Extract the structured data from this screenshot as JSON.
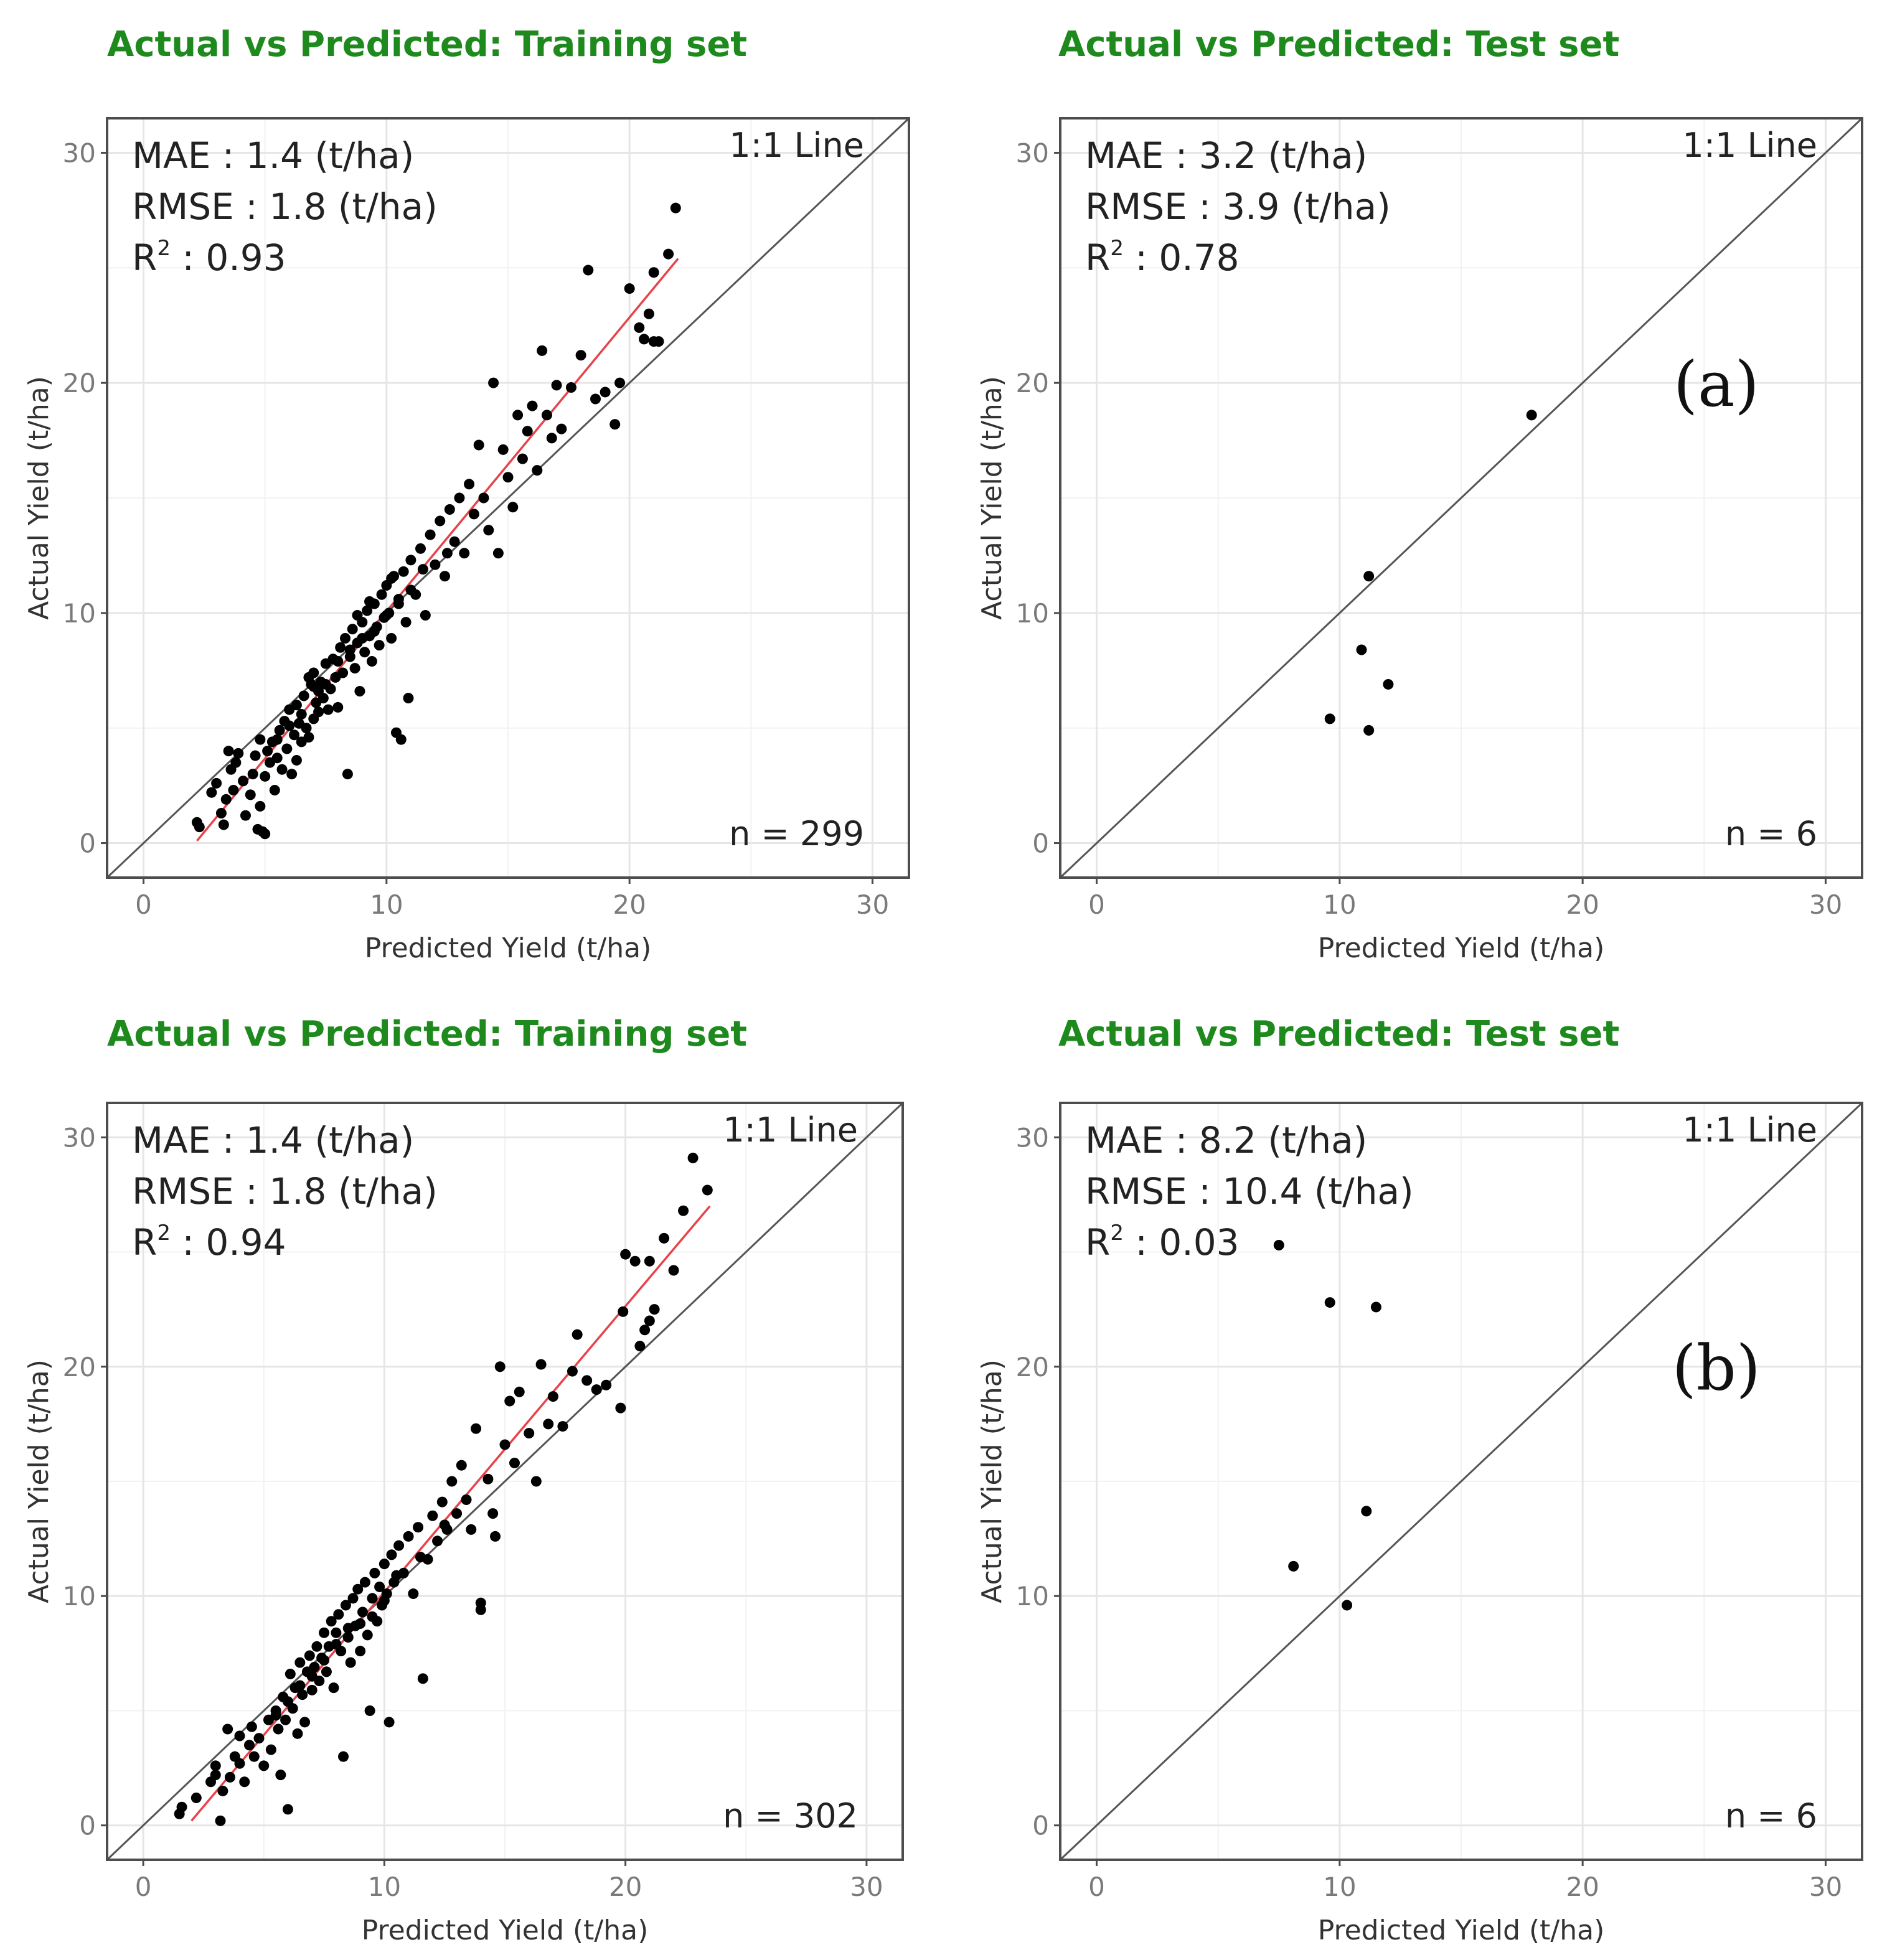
{
  "colors": {
    "title": "#1e8a1e",
    "points": "#000000",
    "fit_line": "#e8434a",
    "identity_line": "#555555",
    "grid": "#e6e6e6"
  },
  "chart_data": [
    {
      "type": "scatter",
      "title": "Actual vs Predicted: Training set",
      "xlabel": "Predicted Yield (t/ha)",
      "ylabel": "Actual Yield (t/ha)",
      "xlim": [
        -1.5,
        31.5
      ],
      "ylim": [
        -1.5,
        31.5
      ],
      "xticks": [
        "0",
        "10",
        "20",
        "30"
      ],
      "yticks": [
        "0",
        "10",
        "20",
        "30"
      ],
      "stats": {
        "mae": "MAE : 1.4 (t/ha)",
        "rmse": "RMSE : 1.8 (t/ha)",
        "r2_label": "R",
        "r2_sup": "2",
        "r2_value": " : 0.93"
      },
      "identity_label": "1:1 Line",
      "n_label": "n = 299",
      "fit_line": {
        "x": [
          2.2,
          22.0
        ],
        "y": [
          0.1,
          25.4
        ]
      },
      "points": [
        [
          2.2,
          0.9
        ],
        [
          2.3,
          0.7
        ],
        [
          2.8,
          2.2
        ],
        [
          3.0,
          2.6
        ],
        [
          3.2,
          1.3
        ],
        [
          3.4,
          1.9
        ],
        [
          3.3,
          0.8
        ],
        [
          3.6,
          3.2
        ],
        [
          3.8,
          3.5
        ],
        [
          3.5,
          4.0
        ],
        [
          3.7,
          2.3
        ],
        [
          3.9,
          3.9
        ],
        [
          4.1,
          2.7
        ],
        [
          4.2,
          1.2
        ],
        [
          4.4,
          2.1
        ],
        [
          4.5,
          3.0
        ],
        [
          4.6,
          3.8
        ],
        [
          4.7,
          0.6
        ],
        [
          4.8,
          1.6
        ],
        [
          4.9,
          0.5
        ],
        [
          5.0,
          2.9
        ],
        [
          5.1,
          4.0
        ],
        [
          5.0,
          0.4
        ],
        [
          5.2,
          3.5
        ],
        [
          5.3,
          4.4
        ],
        [
          5.4,
          2.3
        ],
        [
          5.5,
          3.7
        ],
        [
          5.6,
          4.9
        ],
        [
          5.7,
          3.2
        ],
        [
          5.8,
          5.3
        ],
        [
          5.9,
          4.1
        ],
        [
          6.0,
          5.8
        ],
        [
          6.1,
          3.0
        ],
        [
          6.2,
          4.7
        ],
        [
          6.3,
          6.0
        ],
        [
          6.3,
          3.6
        ],
        [
          6.4,
          5.2
        ],
        [
          6.5,
          4.4
        ],
        [
          6.6,
          6.4
        ],
        [
          6.7,
          5.0
        ],
        [
          6.8,
          4.6
        ],
        [
          6.9,
          6.9
        ],
        [
          7.0,
          5.4
        ],
        [
          7.0,
          7.4
        ],
        [
          7.1,
          6.1
        ],
        [
          7.2,
          5.7
        ],
        [
          7.3,
          7.0
        ],
        [
          7.4,
          6.3
        ],
        [
          7.5,
          7.8
        ],
        [
          7.6,
          5.8
        ],
        [
          7.7,
          6.7
        ],
        [
          7.8,
          8.0
        ],
        [
          7.9,
          7.2
        ],
        [
          8.0,
          5.9
        ],
        [
          8.1,
          8.5
        ],
        [
          8.2,
          7.4
        ],
        [
          8.3,
          8.9
        ],
        [
          8.4,
          3.0
        ],
        [
          8.5,
          8.1
        ],
        [
          8.6,
          9.3
        ],
        [
          8.7,
          7.6
        ],
        [
          8.8,
          8.7
        ],
        [
          8.9,
          6.6
        ],
        [
          9.0,
          9.6
        ],
        [
          9.1,
          8.3
        ],
        [
          9.2,
          10.1
        ],
        [
          9.3,
          9.0
        ],
        [
          9.4,
          7.9
        ],
        [
          9.5,
          10.4
        ],
        [
          9.6,
          9.4
        ],
        [
          9.7,
          8.6
        ],
        [
          9.8,
          10.8
        ],
        [
          9.9,
          9.8
        ],
        [
          10.0,
          11.2
        ],
        [
          10.1,
          10.0
        ],
        [
          10.2,
          8.9
        ],
        [
          10.3,
          11.6
        ],
        [
          10.4,
          4.8
        ],
        [
          10.5,
          10.6
        ],
        [
          10.6,
          4.5
        ],
        [
          10.7,
          11.8
        ],
        [
          10.8,
          9.6
        ],
        [
          10.9,
          6.3
        ],
        [
          11.0,
          12.3
        ],
        [
          11.2,
          10.8
        ],
        [
          11.4,
          12.8
        ],
        [
          11.6,
          9.9
        ],
        [
          11.8,
          13.4
        ],
        [
          12.0,
          12.1
        ],
        [
          12.2,
          14.0
        ],
        [
          12.4,
          11.6
        ],
        [
          12.6,
          14.5
        ],
        [
          12.8,
          13.1
        ],
        [
          13.0,
          15.0
        ],
        [
          13.2,
          12.6
        ],
        [
          13.4,
          15.6
        ],
        [
          13.6,
          14.3
        ],
        [
          13.8,
          17.3
        ],
        [
          14.0,
          15.0
        ],
        [
          14.2,
          13.6
        ],
        [
          14.4,
          20.0
        ],
        [
          14.6,
          12.6
        ],
        [
          14.8,
          17.1
        ],
        [
          15.0,
          15.9
        ],
        [
          15.2,
          14.6
        ],
        [
          15.4,
          18.6
        ],
        [
          15.6,
          16.7
        ],
        [
          15.8,
          17.9
        ],
        [
          16.0,
          19.0
        ],
        [
          16.2,
          16.2
        ],
        [
          16.4,
          21.4
        ],
        [
          16.6,
          18.6
        ],
        [
          16.8,
          17.6
        ],
        [
          17.0,
          19.9
        ],
        [
          17.2,
          18.0
        ],
        [
          17.6,
          19.8
        ],
        [
          18.0,
          21.2
        ],
        [
          18.3,
          24.9
        ],
        [
          18.6,
          19.3
        ],
        [
          19.0,
          19.6
        ],
        [
          19.4,
          18.2
        ],
        [
          19.6,
          20.0
        ],
        [
          20.0,
          24.1
        ],
        [
          20.4,
          22.4
        ],
        [
          20.8,
          23.0
        ],
        [
          21.0,
          24.8
        ],
        [
          21.2,
          21.8
        ],
        [
          21.6,
          25.6
        ],
        [
          21.9,
          27.6
        ],
        [
          20.6,
          21.9
        ],
        [
          21.0,
          21.8
        ],
        [
          6.0,
          5.1
        ],
        [
          6.5,
          5.6
        ],
        [
          7.0,
          6.8
        ],
        [
          7.5,
          6.9
        ],
        [
          8.0,
          7.9
        ],
        [
          8.5,
          8.4
        ],
        [
          9.0,
          8.9
        ],
        [
          9.5,
          9.2
        ],
        [
          10.0,
          9.9
        ],
        [
          10.5,
          10.4
        ],
        [
          11.0,
          11.0
        ],
        [
          5.5,
          4.5
        ],
        [
          4.8,
          4.5
        ],
        [
          6.8,
          7.2
        ],
        [
          7.2,
          6.6
        ],
        [
          8.8,
          9.9
        ],
        [
          9.3,
          10.5
        ],
        [
          10.2,
          11.5
        ],
        [
          11.5,
          11.9
        ],
        [
          12.5,
          12.6
        ]
      ]
    },
    {
      "type": "scatter",
      "title": "Actual vs Predicted: Test set",
      "xlabel": "Predicted Yield (t/ha)",
      "ylabel": "Actual Yield (t/ha)",
      "xlim": [
        -1.5,
        31.5
      ],
      "ylim": [
        -1.5,
        31.5
      ],
      "xticks": [
        "0",
        "10",
        "20",
        "30"
      ],
      "yticks": [
        "0",
        "10",
        "20",
        "30"
      ],
      "stats": {
        "mae": "MAE : 3.2 (t/ha)",
        "rmse": "RMSE : 3.9 (t/ha)",
        "r2_label": "R",
        "r2_sup": "2",
        "r2_value": " : 0.78"
      },
      "identity_label": "1:1 Line",
      "n_label": "n = 6",
      "panel_tag": "(a)",
      "points": [
        [
          17.9,
          18.6
        ],
        [
          11.2,
          11.6
        ],
        [
          10.9,
          8.4
        ],
        [
          12.0,
          6.9
        ],
        [
          9.6,
          5.4
        ],
        [
          11.2,
          4.9
        ]
      ]
    },
    {
      "type": "scatter",
      "title": "Actual vs Predicted: Training set",
      "xlabel": "Predicted Yield (t/ha)",
      "ylabel": "Actual Yield (t/ha)",
      "xlim": [
        -1.5,
        31.5
      ],
      "ylim": [
        -1.5,
        31.5
      ],
      "xticks": [
        "0",
        "10",
        "20",
        "30"
      ],
      "yticks": [
        "0",
        "10",
        "20",
        "30"
      ],
      "stats": {
        "mae": "MAE : 1.4 (t/ha)",
        "rmse": "RMSE : 1.8 (t/ha)",
        "r2_label": "R",
        "r2_sup": "2",
        "r2_value": " : 0.94"
      },
      "identity_label": "1:1 Line",
      "n_label": "n = 302",
      "fit_line": {
        "x": [
          2.0,
          23.5
        ],
        "y": [
          0.2,
          27.0
        ]
      },
      "points": [
        [
          1.5,
          0.5
        ],
        [
          1.6,
          0.8
        ],
        [
          2.2,
          1.2
        ],
        [
          2.8,
          1.9
        ],
        [
          3.0,
          2.6
        ],
        [
          3.2,
          0.2
        ],
        [
          3.3,
          1.5
        ],
        [
          3.5,
          4.2
        ],
        [
          3.6,
          2.1
        ],
        [
          3.8,
          3.0
        ],
        [
          4.0,
          2.7
        ],
        [
          4.2,
          1.9
        ],
        [
          4.4,
          3.5
        ],
        [
          4.5,
          4.3
        ],
        [
          4.6,
          3.0
        ],
        [
          4.8,
          3.8
        ],
        [
          5.0,
          2.6
        ],
        [
          5.2,
          4.6
        ],
        [
          5.3,
          3.3
        ],
        [
          5.5,
          5.0
        ],
        [
          5.6,
          4.2
        ],
        [
          5.7,
          2.2
        ],
        [
          5.8,
          5.6
        ],
        [
          5.9,
          4.6
        ],
        [
          6.0,
          0.7
        ],
        [
          6.1,
          6.6
        ],
        [
          6.2,
          5.1
        ],
        [
          6.3,
          6.0
        ],
        [
          6.4,
          4.0
        ],
        [
          6.5,
          7.1
        ],
        [
          6.6,
          5.7
        ],
        [
          6.7,
          4.5
        ],
        [
          6.8,
          6.7
        ],
        [
          6.9,
          7.4
        ],
        [
          7.0,
          5.9
        ],
        [
          7.1,
          6.9
        ],
        [
          7.2,
          7.8
        ],
        [
          7.3,
          6.3
        ],
        [
          7.4,
          7.3
        ],
        [
          7.5,
          8.4
        ],
        [
          7.6,
          6.7
        ],
        [
          7.7,
          7.8
        ],
        [
          7.8,
          8.9
        ],
        [
          7.9,
          6.0
        ],
        [
          8.0,
          8.4
        ],
        [
          8.1,
          9.2
        ],
        [
          8.2,
          7.6
        ],
        [
          8.3,
          3.0
        ],
        [
          8.4,
          9.6
        ],
        [
          8.5,
          8.2
        ],
        [
          8.6,
          7.1
        ],
        [
          8.7,
          9.9
        ],
        [
          8.8,
          8.7
        ],
        [
          8.9,
          10.3
        ],
        [
          9.0,
          7.6
        ],
        [
          9.1,
          9.3
        ],
        [
          9.2,
          10.6
        ],
        [
          9.3,
          8.3
        ],
        [
          9.4,
          5.0
        ],
        [
          9.5,
          9.9
        ],
        [
          9.6,
          11.0
        ],
        [
          9.7,
          8.9
        ],
        [
          9.8,
          10.4
        ],
        [
          9.9,
          9.6
        ],
        [
          10.0,
          11.4
        ],
        [
          10.1,
          10.1
        ],
        [
          10.2,
          4.5
        ],
        [
          10.3,
          11.8
        ],
        [
          10.4,
          10.6
        ],
        [
          10.6,
          12.2
        ],
        [
          10.8,
          11.0
        ],
        [
          11.0,
          12.6
        ],
        [
          11.2,
          10.1
        ],
        [
          11.4,
          13.0
        ],
        [
          11.6,
          6.4
        ],
        [
          11.8,
          11.6
        ],
        [
          12.0,
          13.5
        ],
        [
          12.2,
          12.4
        ],
        [
          12.4,
          14.1
        ],
        [
          12.6,
          12.9
        ],
        [
          12.8,
          15.0
        ],
        [
          13.0,
          13.6
        ],
        [
          13.2,
          15.7
        ],
        [
          13.4,
          14.2
        ],
        [
          13.6,
          12.9
        ],
        [
          13.8,
          17.3
        ],
        [
          14.0,
          9.7
        ],
        [
          14.0,
          9.4
        ],
        [
          14.3,
          15.1
        ],
        [
          14.5,
          13.6
        ],
        [
          14.6,
          12.6
        ],
        [
          14.8,
          20.0
        ],
        [
          15.0,
          16.6
        ],
        [
          15.2,
          18.5
        ],
        [
          15.4,
          15.8
        ],
        [
          15.6,
          18.9
        ],
        [
          16.0,
          17.1
        ],
        [
          16.3,
          15.0
        ],
        [
          16.5,
          20.1
        ],
        [
          16.8,
          17.5
        ],
        [
          17.0,
          18.7
        ],
        [
          17.4,
          17.4
        ],
        [
          17.8,
          19.8
        ],
        [
          18.0,
          21.4
        ],
        [
          18.4,
          19.4
        ],
        [
          18.8,
          19.0
        ],
        [
          19.2,
          19.2
        ],
        [
          19.8,
          18.2
        ],
        [
          19.9,
          22.4
        ],
        [
          20.0,
          24.9
        ],
        [
          20.4,
          24.6
        ],
        [
          20.6,
          20.9
        ],
        [
          20.8,
          21.6
        ],
        [
          21.0,
          24.6
        ],
        [
          21.2,
          22.5
        ],
        [
          21.6,
          25.6
        ],
        [
          22.0,
          24.2
        ],
        [
          22.4,
          26.8
        ],
        [
          22.8,
          29.1
        ],
        [
          23.4,
          27.7
        ],
        [
          21.0,
          22.0
        ],
        [
          6.0,
          5.4
        ],
        [
          7.0,
          6.5
        ],
        [
          8.0,
          7.9
        ],
        [
          9.0,
          8.8
        ],
        [
          10.0,
          9.8
        ],
        [
          5.5,
          4.8
        ],
        [
          6.5,
          6.1
        ],
        [
          7.5,
          7.2
        ],
        [
          8.5,
          8.6
        ],
        [
          9.5,
          9.1
        ],
        [
          10.5,
          10.9
        ],
        [
          11.5,
          11.7
        ],
        [
          12.5,
          13.1
        ],
        [
          4.0,
          3.9
        ],
        [
          3.0,
          2.2
        ]
      ]
    },
    {
      "type": "scatter",
      "title": "Actual vs Predicted: Test set",
      "xlabel": "Predicted Yield (t/ha)",
      "ylabel": "Actual Yield (t/ha)",
      "xlim": [
        -1.5,
        31.5
      ],
      "ylim": [
        -1.5,
        31.5
      ],
      "xticks": [
        "0",
        "10",
        "20",
        "30"
      ],
      "yticks": [
        "0",
        "10",
        "20",
        "30"
      ],
      "stats": {
        "mae": "MAE : 8.2 (t/ha)",
        "rmse": "RMSE : 10.4 (t/ha)",
        "r2_label": "R",
        "r2_sup": "2",
        "r2_value": " : 0.03"
      },
      "identity_label": "1:1 Line",
      "n_label": "n = 6",
      "panel_tag": "(b)",
      "points": [
        [
          7.5,
          25.3
        ],
        [
          9.6,
          22.8
        ],
        [
          11.5,
          22.6
        ],
        [
          11.1,
          13.7
        ],
        [
          8.1,
          11.3
        ],
        [
          10.3,
          9.6
        ]
      ]
    }
  ]
}
